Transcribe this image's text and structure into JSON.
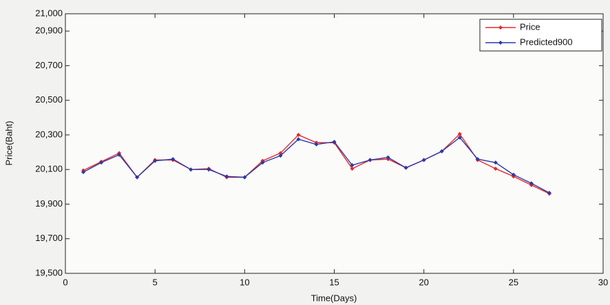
{
  "chart_data": {
    "type": "line",
    "x_label": "Time(Days)",
    "y_label": "Price(Baht)",
    "x": [
      1,
      2,
      3,
      4,
      5,
      6,
      7,
      8,
      9,
      10,
      11,
      12,
      13,
      14,
      15,
      16,
      17,
      18,
      19,
      20,
      21,
      22,
      23,
      24,
      25,
      26,
      27
    ],
    "series": [
      {
        "name": "Price",
        "color": "#e8282a",
        "values": [
          20095,
          20145,
          20195,
          20055,
          20155,
          20155,
          20100,
          20105,
          20055,
          20055,
          20150,
          20195,
          20300,
          20255,
          20255,
          20105,
          20155,
          20160,
          20110,
          20155,
          20205,
          20305,
          20155,
          20105,
          20060,
          20010,
          19960
        ]
      },
      {
        "name": "Predicted900",
        "color": "#2a3aa8",
        "values": [
          20085,
          20140,
          20185,
          20055,
          20150,
          20160,
          20100,
          20100,
          20060,
          20055,
          20140,
          20180,
          20275,
          20245,
          20260,
          20125,
          20155,
          20170,
          20110,
          20155,
          20205,
          20285,
          20160,
          20140,
          20070,
          20020,
          19965
        ]
      }
    ],
    "xlim": [
      0,
      30
    ],
    "xticks": [
      0,
      5,
      10,
      15,
      20,
      25,
      30
    ],
    "ylim": [
      19500,
      21000
    ],
    "yticks": [
      {
        "value": 19500,
        "label": "19,500"
      },
      {
        "value": 19700,
        "label": "19,700"
      },
      {
        "value": 19900,
        "label": "19,900"
      },
      {
        "value": 20100,
        "label": "20,100"
      },
      {
        "value": 20300,
        "label": "20,300"
      },
      {
        "value": 20500,
        "label": "20,500"
      },
      {
        "value": 20700,
        "label": "20,700"
      },
      {
        "value": 20900,
        "label": "20,900"
      },
      {
        "value": 21000,
        "label": "21,000"
      }
    ],
    "grid": false,
    "legend": "top-right"
  }
}
